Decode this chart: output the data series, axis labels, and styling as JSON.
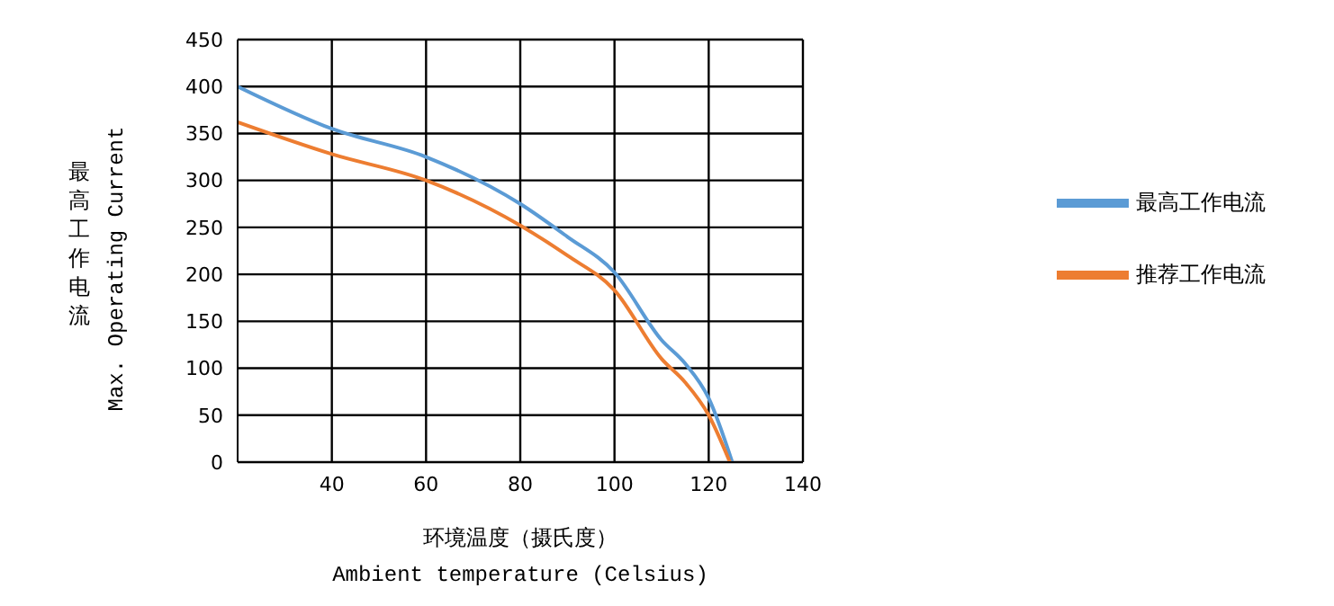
{
  "chart_data": {
    "type": "line",
    "xlabel": "环境温度（摄氏度）\nAmbient temperature (Celsius)",
    "ylabel": "最高工作电流\nMax. Operating Current",
    "xlim": [
      20,
      140
    ],
    "xticks": [
      40,
      60,
      80,
      100,
      120,
      140
    ],
    "ylim": [
      0,
      450
    ],
    "yticks": [
      0,
      50,
      100,
      150,
      200,
      250,
      300,
      350,
      400,
      450
    ],
    "grid": true,
    "legend": "right",
    "marker": "none",
    "line_style": "solid",
    "series": [
      {
        "name": "最高工作电流",
        "color": "#5b9bd5",
        "x": [
          20,
          40,
          60,
          80,
          90,
          100,
          110,
          115,
          120,
          125
        ],
        "values": [
          400,
          355,
          325,
          275,
          240,
          202,
          130,
          105,
          68,
          0
        ]
      },
      {
        "name": "推荐工作电流",
        "color": "#ed7d31",
        "x": [
          20,
          40,
          60,
          80,
          90,
          100,
          110,
          115,
          120,
          124.5
        ],
        "values": [
          362,
          328,
          300,
          252,
          220,
          183,
          110,
          85,
          50,
          0
        ]
      }
    ]
  }
}
